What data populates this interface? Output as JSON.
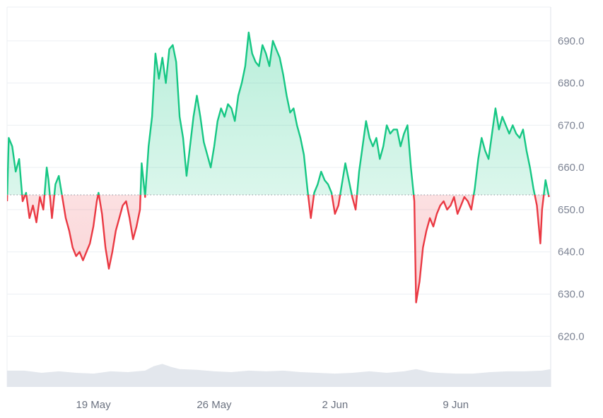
{
  "chart_data": {
    "type": "area",
    "title": "",
    "xlabel": "",
    "ylabel": "",
    "baseline": 653.5,
    "ylim": [
      608,
      698
    ],
    "y_ticks": [
      {
        "value": 690,
        "label": "690.0"
      },
      {
        "value": 680,
        "label": "680.0"
      },
      {
        "value": 670,
        "label": "670.0"
      },
      {
        "value": 660,
        "label": "660.0"
      },
      {
        "value": 650,
        "label": "650.0"
      },
      {
        "value": 640,
        "label": "640.0"
      },
      {
        "value": 630,
        "label": "630.0"
      },
      {
        "value": 620,
        "label": "620.0"
      }
    ],
    "x_ticks": [
      {
        "t": 5.0,
        "label": "19 May"
      },
      {
        "t": 12.0,
        "label": "26 May"
      },
      {
        "t": 19.0,
        "label": "2 Jun"
      },
      {
        "t": 26.0,
        "label": "9 Jun"
      }
    ],
    "x_range": [
      0,
      31.5
    ],
    "series": [
      {
        "values": [
          [
            0.0,
            652
          ],
          [
            0.1,
            667
          ],
          [
            0.3,
            665
          ],
          [
            0.5,
            659
          ],
          [
            0.7,
            662
          ],
          [
            0.9,
            652
          ],
          [
            1.1,
            654
          ],
          [
            1.3,
            648
          ],
          [
            1.5,
            651
          ],
          [
            1.7,
            647
          ],
          [
            1.9,
            653
          ],
          [
            2.1,
            650
          ],
          [
            2.3,
            660
          ],
          [
            2.4,
            657
          ],
          [
            2.6,
            648
          ],
          [
            2.8,
            656
          ],
          [
            3.0,
            658
          ],
          [
            3.2,
            653
          ],
          [
            3.4,
            648
          ],
          [
            3.6,
            645
          ],
          [
            3.8,
            641
          ],
          [
            4.0,
            639
          ],
          [
            4.2,
            640
          ],
          [
            4.4,
            638
          ],
          [
            4.6,
            640
          ],
          [
            4.8,
            642
          ],
          [
            5.0,
            646
          ],
          [
            5.2,
            652
          ],
          [
            5.3,
            654
          ],
          [
            5.5,
            649
          ],
          [
            5.7,
            641
          ],
          [
            5.9,
            636
          ],
          [
            6.1,
            640
          ],
          [
            6.3,
            645
          ],
          [
            6.5,
            648
          ],
          [
            6.7,
            651
          ],
          [
            6.9,
            652
          ],
          [
            7.1,
            648
          ],
          [
            7.3,
            643
          ],
          [
            7.5,
            646
          ],
          [
            7.7,
            650
          ],
          [
            7.8,
            661
          ],
          [
            8.0,
            653
          ],
          [
            8.2,
            665
          ],
          [
            8.4,
            672
          ],
          [
            8.6,
            687
          ],
          [
            8.8,
            681
          ],
          [
            9.0,
            686
          ],
          [
            9.2,
            680
          ],
          [
            9.4,
            688
          ],
          [
            9.6,
            689
          ],
          [
            9.8,
            685
          ],
          [
            10.0,
            672
          ],
          [
            10.2,
            667
          ],
          [
            10.4,
            658
          ],
          [
            10.6,
            665
          ],
          [
            10.8,
            672
          ],
          [
            11.0,
            677
          ],
          [
            11.2,
            672
          ],
          [
            11.4,
            666
          ],
          [
            11.6,
            663
          ],
          [
            11.8,
            660
          ],
          [
            12.0,
            665
          ],
          [
            12.2,
            671
          ],
          [
            12.4,
            674
          ],
          [
            12.6,
            672
          ],
          [
            12.8,
            675
          ],
          [
            13.0,
            674
          ],
          [
            13.2,
            671
          ],
          [
            13.4,
            677
          ],
          [
            13.6,
            680
          ],
          [
            13.8,
            684
          ],
          [
            14.0,
            692
          ],
          [
            14.2,
            687
          ],
          [
            14.4,
            685
          ],
          [
            14.6,
            684
          ],
          [
            14.8,
            689
          ],
          [
            15.0,
            687
          ],
          [
            15.2,
            684
          ],
          [
            15.4,
            690
          ],
          [
            15.6,
            688
          ],
          [
            15.8,
            686
          ],
          [
            16.0,
            682
          ],
          [
            16.2,
            677
          ],
          [
            16.4,
            673
          ],
          [
            16.6,
            674
          ],
          [
            16.8,
            670
          ],
          [
            17.0,
            667
          ],
          [
            17.2,
            663
          ],
          [
            17.4,
            655
          ],
          [
            17.6,
            648
          ],
          [
            17.8,
            654
          ],
          [
            18.0,
            656
          ],
          [
            18.2,
            659
          ],
          [
            18.4,
            657
          ],
          [
            18.6,
            656
          ],
          [
            18.8,
            654
          ],
          [
            19.0,
            649
          ],
          [
            19.2,
            651
          ],
          [
            19.4,
            656
          ],
          [
            19.6,
            661
          ],
          [
            19.8,
            657
          ],
          [
            20.0,
            653
          ],
          [
            20.2,
            650
          ],
          [
            20.4,
            659
          ],
          [
            20.6,
            665
          ],
          [
            20.8,
            671
          ],
          [
            21.0,
            667
          ],
          [
            21.2,
            665
          ],
          [
            21.4,
            667
          ],
          [
            21.6,
            662
          ],
          [
            21.8,
            665
          ],
          [
            22.0,
            670
          ],
          [
            22.2,
            668
          ],
          [
            22.4,
            669
          ],
          [
            22.6,
            669
          ],
          [
            22.8,
            665
          ],
          [
            23.0,
            668
          ],
          [
            23.2,
            670
          ],
          [
            23.4,
            660
          ],
          [
            23.6,
            652
          ],
          [
            23.7,
            628
          ],
          [
            23.9,
            633
          ],
          [
            24.1,
            641
          ],
          [
            24.3,
            645
          ],
          [
            24.5,
            648
          ],
          [
            24.7,
            646
          ],
          [
            24.9,
            649
          ],
          [
            25.1,
            651
          ],
          [
            25.3,
            652
          ],
          [
            25.5,
            650
          ],
          [
            25.7,
            651
          ],
          [
            25.9,
            653
          ],
          [
            26.1,
            649
          ],
          [
            26.3,
            651
          ],
          [
            26.5,
            653
          ],
          [
            26.7,
            652
          ],
          [
            26.9,
            650
          ],
          [
            27.1,
            655
          ],
          [
            27.3,
            662
          ],
          [
            27.5,
            667
          ],
          [
            27.7,
            664
          ],
          [
            27.9,
            662
          ],
          [
            28.1,
            668
          ],
          [
            28.3,
            674
          ],
          [
            28.5,
            669
          ],
          [
            28.7,
            672
          ],
          [
            28.9,
            670
          ],
          [
            29.1,
            668
          ],
          [
            29.3,
            670
          ],
          [
            29.5,
            668
          ],
          [
            29.7,
            667
          ],
          [
            29.9,
            669
          ],
          [
            30.1,
            664
          ],
          [
            30.3,
            660
          ],
          [
            30.5,
            655
          ],
          [
            30.7,
            651
          ],
          [
            30.9,
            642
          ],
          [
            31.0,
            650
          ],
          [
            31.2,
            657
          ],
          [
            31.4,
            653
          ]
        ]
      }
    ],
    "volume": [
      [
        0.0,
        0.22
      ],
      [
        1.0,
        0.22
      ],
      [
        2.0,
        0.19
      ],
      [
        3.0,
        0.21
      ],
      [
        4.0,
        0.19
      ],
      [
        5.0,
        0.18
      ],
      [
        6.0,
        0.21
      ],
      [
        7.0,
        0.2
      ],
      [
        8.0,
        0.22
      ],
      [
        8.5,
        0.28
      ],
      [
        9.0,
        0.31
      ],
      [
        9.5,
        0.27
      ],
      [
        10.0,
        0.24
      ],
      [
        11.0,
        0.23
      ],
      [
        12.0,
        0.21
      ],
      [
        13.0,
        0.2
      ],
      [
        14.0,
        0.22
      ],
      [
        15.0,
        0.21
      ],
      [
        16.0,
        0.22
      ],
      [
        17.0,
        0.2
      ],
      [
        18.0,
        0.19
      ],
      [
        19.0,
        0.18
      ],
      [
        20.0,
        0.19
      ],
      [
        21.0,
        0.21
      ],
      [
        22.0,
        0.19
      ],
      [
        23.0,
        0.21
      ],
      [
        23.7,
        0.24
      ],
      [
        24.5,
        0.2
      ],
      [
        25.0,
        0.19
      ],
      [
        26.0,
        0.18
      ],
      [
        27.0,
        0.18
      ],
      [
        28.0,
        0.2
      ],
      [
        29.0,
        0.21
      ],
      [
        30.0,
        0.21
      ],
      [
        31.0,
        0.22
      ],
      [
        31.5,
        0.24
      ]
    ],
    "colors": {
      "up_line": "#16c784",
      "down_line": "#ea3943",
      "up_fill": "#16c784",
      "down_fill": "#ea3943",
      "grid": "#eceff3",
      "baseline": "#8a8f99",
      "volume": "#e3e7ed"
    }
  }
}
